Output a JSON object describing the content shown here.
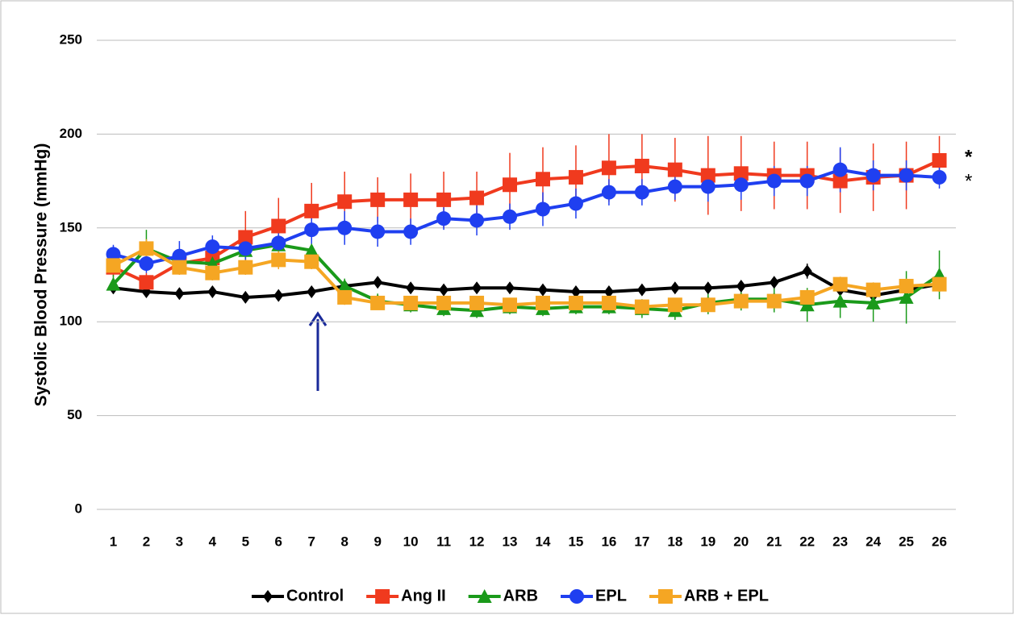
{
  "chart_data": {
    "type": "line",
    "y_label": "Systolic Blood Pressure (mmHg)",
    "categories": [
      "1",
      "2",
      "3",
      "4",
      "5",
      "6",
      "7",
      "8",
      "9",
      "10",
      "11",
      "12",
      "13",
      "14",
      "15",
      "16",
      "17",
      "18",
      "19",
      "20",
      "21",
      "22",
      "23",
      "24",
      "25",
      "26"
    ],
    "ylim": [
      0,
      250
    ],
    "yticks": [
      0,
      50,
      100,
      150,
      200,
      250
    ],
    "grid": true,
    "legend": "bottom",
    "annotations": [
      "*",
      "*"
    ],
    "series": [
      {
        "name": "Control",
        "color": "#000000",
        "marker": "diamond",
        "values": [
          118,
          116,
          115,
          116,
          113,
          114,
          116,
          119,
          121,
          118,
          117,
          118,
          118,
          117,
          116,
          116,
          117,
          118,
          118,
          119,
          121,
          127,
          117,
          114,
          117,
          120
        ],
        "errors": [
          3,
          3,
          3,
          3,
          3,
          3,
          3,
          3,
          3,
          3,
          3,
          3,
          3,
          3,
          3,
          3,
          3,
          3,
          3,
          3,
          3,
          4,
          4,
          4,
          4,
          4
        ]
      },
      {
        "name": "Ang II",
        "color": "#f03a1e",
        "marker": "square",
        "values": [
          129,
          121,
          131,
          134,
          145,
          151,
          159,
          164,
          165,
          165,
          165,
          166,
          173,
          176,
          177,
          182,
          183,
          181,
          178,
          179,
          178,
          178,
          175,
          177,
          178,
          186
        ],
        "errors": [
          5,
          5,
          5,
          5,
          14,
          15,
          15,
          16,
          12,
          14,
          15,
          14,
          17,
          17,
          17,
          18,
          17,
          17,
          21,
          20,
          18,
          18,
          17,
          18,
          18,
          13
        ]
      },
      {
        "name": "ARB",
        "color": "#1a9a1a",
        "marker": "triangle",
        "values": [
          120,
          139,
          132,
          131,
          138,
          141,
          138,
          119,
          111,
          109,
          107,
          106,
          108,
          107,
          108,
          108,
          107,
          106,
          110,
          112,
          112,
          109,
          111,
          110,
          113,
          125
        ],
        "errors": [
          5,
          10,
          6,
          5,
          5,
          5,
          6,
          4,
          4,
          4,
          4,
          4,
          4,
          4,
          4,
          4,
          5,
          5,
          6,
          6,
          7,
          9,
          9,
          10,
          14,
          13
        ]
      },
      {
        "name": "EPL",
        "color": "#1f3ff0",
        "marker": "circle",
        "values": [
          136,
          131,
          135,
          140,
          139,
          142,
          149,
          150,
          148,
          148,
          155,
          154,
          156,
          160,
          163,
          169,
          169,
          172,
          172,
          173,
          175,
          175,
          181,
          178,
          178,
          177
        ],
        "errors": [
          5,
          5,
          8,
          6,
          6,
          8,
          8,
          9,
          8,
          7,
          6,
          8,
          7,
          9,
          8,
          7,
          7,
          7,
          8,
          8,
          8,
          8,
          12,
          8,
          8,
          6
        ]
      },
      {
        "name": "ARB + EPL",
        "color": "#f5a623",
        "marker": "square",
        "values": [
          130,
          139,
          129,
          126,
          129,
          133,
          132,
          113,
          110,
          110,
          110,
          110,
          109,
          110,
          110,
          110,
          108,
          109,
          109,
          111,
          111,
          113,
          120,
          117,
          119,
          120
        ],
        "errors": [
          4,
          5,
          4,
          4,
          4,
          5,
          4,
          4,
          3,
          3,
          3,
          3,
          3,
          3,
          3,
          3,
          3,
          3,
          3,
          3,
          3,
          4,
          4,
          4,
          4,
          4
        ]
      }
    ]
  }
}
